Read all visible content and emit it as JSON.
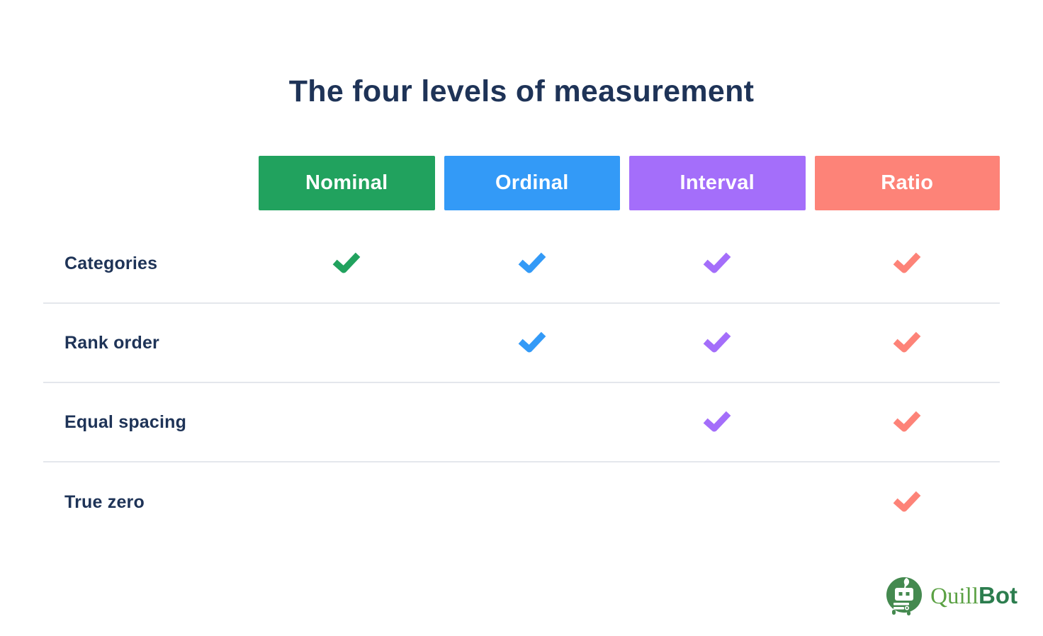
{
  "title": "The four levels of measurement",
  "colors": {
    "heading_text": "#1e3357",
    "row_label_text": "#1e3357",
    "divider": "#e4e7ec",
    "nominal_green": "#21a25e",
    "ordinal_blue": "#339af7",
    "interval_purple": "#a46efa",
    "ratio_salmon": "#fd8378",
    "logo_circle_green": "#44894f",
    "logo_quill_green": "#5ba144",
    "logo_bot_green": "#2c7d4e"
  },
  "table": {
    "columns": [
      {
        "key": "nominal",
        "label": "Nominal",
        "color": "#21a25e"
      },
      {
        "key": "ordinal",
        "label": "Ordinal",
        "color": "#339af7"
      },
      {
        "key": "interval",
        "label": "Interval",
        "color": "#a46efa"
      },
      {
        "key": "ratio",
        "label": "Ratio",
        "color": "#fd8378"
      }
    ],
    "rows": [
      {
        "label": "Categories",
        "checks": [
          true,
          true,
          true,
          true
        ]
      },
      {
        "label": "Rank order",
        "checks": [
          false,
          true,
          true,
          true
        ]
      },
      {
        "label": "Equal spacing",
        "checks": [
          false,
          false,
          true,
          true
        ]
      },
      {
        "label": "True zero",
        "checks": [
          false,
          false,
          false,
          true
        ]
      }
    ]
  },
  "logo": {
    "icon": "quillbot-robot-icon",
    "quill": "Quill",
    "bot": "Bot"
  },
  "chart_data": {
    "type": "table",
    "title": "The four levels of measurement",
    "columns": [
      "Nominal",
      "Ordinal",
      "Interval",
      "Ratio"
    ],
    "rows": [
      "Categories",
      "Rank order",
      "Equal spacing",
      "True zero"
    ],
    "matrix": [
      [
        true,
        true,
        true,
        true
      ],
      [
        false,
        true,
        true,
        true
      ],
      [
        false,
        false,
        true,
        true
      ],
      [
        false,
        false,
        false,
        true
      ]
    ],
    "column_colors": [
      "#21a25e",
      "#339af7",
      "#a46efa",
      "#fd8378"
    ],
    "legend_position": "none",
    "grid": "horizontal-dividers"
  }
}
